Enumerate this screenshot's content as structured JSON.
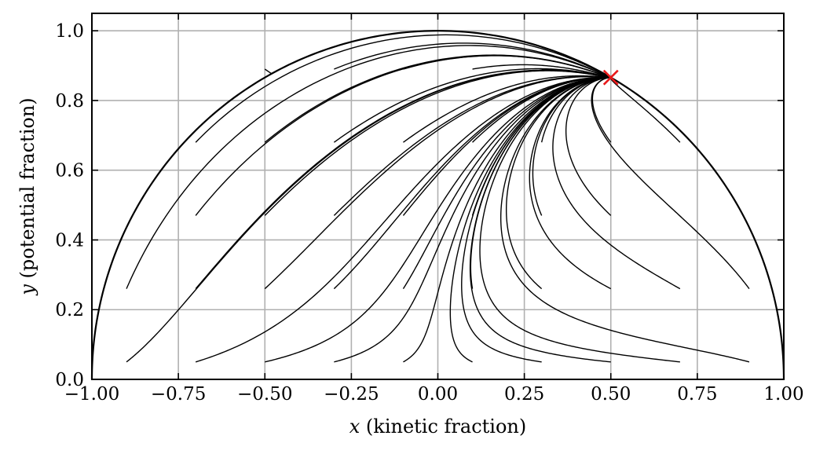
{
  "chart_data": {
    "type": "line",
    "xlabel_var": "x",
    "xlabel_text": " (kinetic fraction)",
    "ylabel_var": "y",
    "ylabel_text": " (potential fraction)",
    "xlim": [
      -1.0,
      1.0
    ],
    "ylim": [
      0.0,
      1.05
    ],
    "x_ticks": [
      -1.0,
      -0.75,
      -0.5,
      -0.25,
      0.0,
      0.25,
      0.5,
      0.75,
      1.0
    ],
    "x_tick_labels": [
      "−1.00",
      "−0.75",
      "−0.50",
      "−0.25",
      "0.00",
      "0.25",
      "0.50",
      "0.75",
      "1.00"
    ],
    "y_ticks": [
      0.0,
      0.2,
      0.4,
      0.6,
      0.8,
      1.0
    ],
    "y_tick_labels": [
      "0.0",
      "0.2",
      "0.4",
      "0.6",
      "0.8",
      "1.0"
    ],
    "grid": true,
    "boundary": "unit-semicircle",
    "attractor": {
      "x": 0.5,
      "y": 0.866,
      "marker": "x",
      "color": "#e8191a"
    },
    "line_color": "#000000",
    "trajectory_starts": [
      [
        -0.9,
        0.05
      ],
      [
        -0.7,
        0.05
      ],
      [
        -0.5,
        0.05
      ],
      [
        -0.3,
        0.05
      ],
      [
        -0.1,
        0.05
      ],
      [
        0.1,
        0.05
      ],
      [
        0.3,
        0.05
      ],
      [
        0.5,
        0.05
      ],
      [
        0.7,
        0.05
      ],
      [
        0.9,
        0.05
      ],
      [
        -0.9,
        0.26
      ],
      [
        -0.7,
        0.26
      ],
      [
        -0.5,
        0.26
      ],
      [
        -0.3,
        0.26
      ],
      [
        -0.1,
        0.26
      ],
      [
        0.1,
        0.26
      ],
      [
        0.3,
        0.26
      ],
      [
        0.5,
        0.26
      ],
      [
        0.7,
        0.26
      ],
      [
        0.9,
        0.26
      ],
      [
        -0.7,
        0.47
      ],
      [
        -0.5,
        0.47
      ],
      [
        -0.3,
        0.47
      ],
      [
        -0.1,
        0.47
      ],
      [
        0.1,
        0.47
      ],
      [
        0.3,
        0.47
      ],
      [
        0.5,
        0.47
      ],
      [
        -0.7,
        0.68
      ],
      [
        -0.5,
        0.68
      ],
      [
        -0.3,
        0.68
      ],
      [
        -0.1,
        0.68
      ],
      [
        0.1,
        0.68
      ],
      [
        0.3,
        0.68
      ],
      [
        0.5,
        0.68
      ],
      [
        0.7,
        0.68
      ],
      [
        -0.5,
        0.89
      ],
      [
        -0.3,
        0.89
      ],
      [
        -0.1,
        0.89
      ],
      [
        0.1,
        0.89
      ],
      [
        0.3,
        0.89
      ]
    ]
  }
}
